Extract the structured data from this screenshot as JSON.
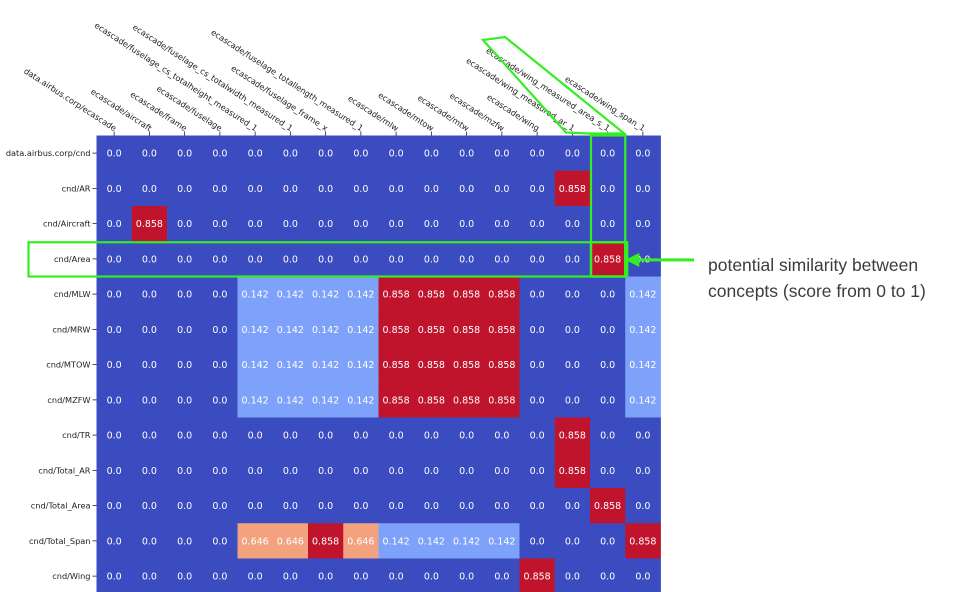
{
  "chart_data": {
    "type": "heatmap",
    "colormap": "coolwarm",
    "value_range": [
      0,
      1
    ],
    "columns": [
      "data.airbus.corp/ecascade",
      "ecascade/aircraft",
      "ecascade/frame",
      "ecascade/fuselage",
      "ecascade/fuselage_cs_totalheight_measured_1",
      "ecascade/fuselage_cs_totalwidth_measured_1",
      "ecascade/fuselage_frame_x",
      "ecascade/fuselage_totallength_measured_1",
      "ecascade/mlw",
      "ecascade/mtow",
      "ecascade/mtw",
      "ecascade/mzfw",
      "ecascade/wing",
      "ecascade/wing_measured_ar_1",
      "ecascade/wing_measured_area_s_1",
      "ecascade/wing_span_1"
    ],
    "rows": [
      "data.airbus.corp/cnd",
      "cnd/AR",
      "cnd/Aircraft",
      "cnd/Area",
      "cnd/MLW",
      "cnd/MRW",
      "cnd/MTOW",
      "cnd/MZFW",
      "cnd/TR",
      "cnd/Total_AR",
      "cnd/Total_Area",
      "cnd/Total_Span",
      "cnd/Wing"
    ],
    "values": [
      [
        "0.0",
        "0.0",
        "0.0",
        "0.0",
        "0.0",
        "0.0",
        "0.0",
        "0.0",
        "0.0",
        "0.0",
        "0.0",
        "0.0",
        "0.0",
        "0.0",
        "0.0",
        "0.0"
      ],
      [
        "0.0",
        "0.0",
        "0.0",
        "0.0",
        "0.0",
        "0.0",
        "0.0",
        "0.0",
        "0.0",
        "0.0",
        "0.0",
        "0.0",
        "0.0",
        "0.858",
        "0.0",
        "0.0"
      ],
      [
        "0.0",
        "0.858",
        "0.0",
        "0.0",
        "0.0",
        "0.0",
        "0.0",
        "0.0",
        "0.0",
        "0.0",
        "0.0",
        "0.0",
        "0.0",
        "0.0",
        "0.0",
        "0.0"
      ],
      [
        "0.0",
        "0.0",
        "0.0",
        "0.0",
        "0.0",
        "0.0",
        "0.0",
        "0.0",
        "0.0",
        "0.0",
        "0.0",
        "0.0",
        "0.0",
        "0.0",
        "0.858",
        "0.0"
      ],
      [
        "0.0",
        "0.0",
        "0.0",
        "0.0",
        "0.142",
        "0.142",
        "0.142",
        "0.142",
        "0.858",
        "0.858",
        "0.858",
        "0.858",
        "0.0",
        "0.0",
        "0.0",
        "0.142"
      ],
      [
        "0.0",
        "0.0",
        "0.0",
        "0.0",
        "0.142",
        "0.142",
        "0.142",
        "0.142",
        "0.858",
        "0.858",
        "0.858",
        "0.858",
        "0.0",
        "0.0",
        "0.0",
        "0.142"
      ],
      [
        "0.0",
        "0.0",
        "0.0",
        "0.0",
        "0.142",
        "0.142",
        "0.142",
        "0.142",
        "0.858",
        "0.858",
        "0.858",
        "0.858",
        "0.0",
        "0.0",
        "0.0",
        "0.142"
      ],
      [
        "0.0",
        "0.0",
        "0.0",
        "0.0",
        "0.142",
        "0.142",
        "0.142",
        "0.142",
        "0.858",
        "0.858",
        "0.858",
        "0.858",
        "0.0",
        "0.0",
        "0.0",
        "0.142"
      ],
      [
        "0.0",
        "0.0",
        "0.0",
        "0.0",
        "0.0",
        "0.0",
        "0.0",
        "0.0",
        "0.0",
        "0.0",
        "0.0",
        "0.0",
        "0.0",
        "0.858",
        "0.0",
        "0.0"
      ],
      [
        "0.0",
        "0.0",
        "0.0",
        "0.0",
        "0.0",
        "0.0",
        "0.0",
        "0.0",
        "0.0",
        "0.0",
        "0.0",
        "0.0",
        "0.0",
        "0.858",
        "0.0",
        "0.0"
      ],
      [
        "0.0",
        "0.0",
        "0.0",
        "0.0",
        "0.0",
        "0.0",
        "0.0",
        "0.0",
        "0.0",
        "0.0",
        "0.0",
        "0.0",
        "0.0",
        "0.0",
        "0.858",
        "0.0"
      ],
      [
        "0.0",
        "0.0",
        "0.0",
        "0.0",
        "0.646",
        "0.646",
        "0.858",
        "0.646",
        "0.142",
        "0.142",
        "0.142",
        "0.142",
        "0.0",
        "0.0",
        "0.0",
        "0.858"
      ],
      [
        "0.0",
        "0.0",
        "0.0",
        "0.0",
        "0.0",
        "0.0",
        "0.0",
        "0.0",
        "0.0",
        "0.0",
        "0.0",
        "0.0",
        "0.858",
        "0.0",
        "0.0",
        "0.0"
      ]
    ],
    "cell_colors": {
      "0.0": "#3b4cc0",
      "0.142": "#7ea1f9",
      "0.646": "#f3a280",
      "0.858": "#c0142d"
    },
    "highlights": [
      {
        "kind": "row",
        "label": "cnd/Area"
      },
      {
        "kind": "column",
        "label": "ecascade/wing_measured_area_s_1"
      },
      {
        "kind": "cell",
        "row": "cnd/Area",
        "column": "ecascade/wing_measured_area_s_1"
      }
    ],
    "highlight_color": "#33ee22"
  },
  "annotation": {
    "line1": "potential similarity between",
    "line2": "concepts (score from 0 to 1)"
  }
}
